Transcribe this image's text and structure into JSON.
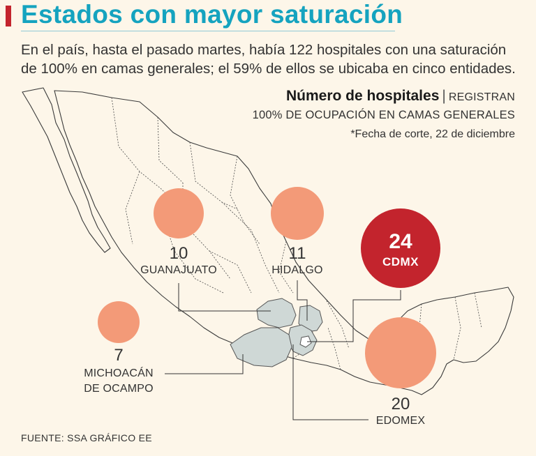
{
  "header": {
    "title": "Estados con mayor saturación",
    "subtitle": "En el país, hasta el pasado martes, había 122 hospitales con una saturación de 100% en camas generales; el 59% de ellos se ubicaba en cinco entidades."
  },
  "legend": {
    "bold": "Número de hospitales",
    "separator": "|",
    "registran": "REGISTRAN",
    "line2": "100% DE OCUPACIÓN EN CAMAS GENERALES",
    "note": "*Fecha de corte, 22 de diciembre"
  },
  "states": [
    {
      "key": "guanajuato",
      "name": "GUANAJUATO",
      "hospitals": "10"
    },
    {
      "key": "hidalgo",
      "name": "HIDALGO",
      "hospitals": "11"
    },
    {
      "key": "cdmx",
      "name": "CDMX",
      "hospitals": "24"
    },
    {
      "key": "michoacan",
      "name_line1": "MICHOACÁN",
      "name_line2": "DE OCAMPO",
      "hospitals": "7"
    },
    {
      "key": "edomex",
      "name": "EDOMEX",
      "hospitals": "20"
    }
  ],
  "source": "FUENTE: SSA GRÁFICO EE",
  "colors": {
    "background": "#fdf6e9",
    "title": "#15a3bf",
    "accent": "#c3242d",
    "bubble": "#f39a78",
    "bubble_highlight": "#c3242d",
    "highlighted_state": "#cfd8d6"
  }
}
